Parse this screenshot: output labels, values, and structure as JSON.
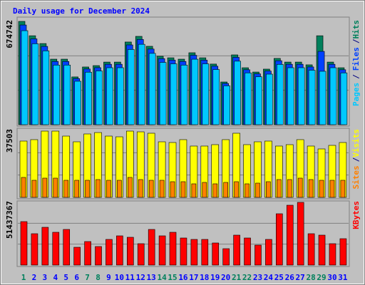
{
  "title": "Daily usage for December 2024",
  "legend_separator": "/",
  "chart_data": [
    {
      "type": "bar",
      "ylim": [
        0,
        674742
      ],
      "yticks": [
        674742
      ],
      "series": [
        {
          "name": "Hits",
          "color": "#00805c",
          "values": [
            674742,
            581000,
            530000,
            428000,
            428000,
            312000,
            377000,
            386000,
            409000,
            409000,
            540000,
            577000,
            512000,
            447000,
            437000,
            428000,
            470000,
            437000,
            396000,
            279000,
            456000,
            372000,
            344000,
            363000,
            433000,
            409000,
            409000,
            391000,
            581000,
            409000,
            372000
          ]
        },
        {
          "name": "Files",
          "color": "#0040ff",
          "values": [
            651200,
            560700,
            511500,
            413000,
            413000,
            301100,
            363800,
            372500,
            394700,
            394700,
            521100,
            556800,
            494100,
            431400,
            421700,
            413000,
            453600,
            421700,
            382100,
            269200,
            440000,
            359000,
            332000,
            350300,
            417800,
            394700,
            394700,
            377300,
            479000,
            394700,
            359000
          ]
        },
        {
          "name": "Pages",
          "color": "#00c8ff",
          "values": [
            614000,
            528700,
            482300,
            389500,
            389500,
            283900,
            343100,
            351300,
            372200,
            372200,
            491400,
            525100,
            465900,
            406800,
            397700,
            389500,
            427700,
            397700,
            360400,
            253900,
            415000,
            338500,
            313000,
            330300,
            394000,
            372200,
            372200,
            355800,
            349000,
            372200,
            338500
          ]
        }
      ]
    },
    {
      "type": "bar",
      "ylim": [
        0,
        37503
      ],
      "yticks": [
        37503
      ],
      "series": [
        {
          "name": "Visits",
          "color": "#ffff00",
          "values": [
            31520,
            32320,
            37100,
            37100,
            34310,
            31120,
            35510,
            36300,
            34310,
            33910,
            37100,
            36700,
            35910,
            31120,
            30720,
            32320,
            28730,
            28730,
            29520,
            32320,
            35910,
            29520,
            31120,
            31520,
            28730,
            29520,
            32320,
            28730,
            27130,
            29120,
            30720
          ]
        },
        {
          "name": "Sites",
          "color": "#ff8000",
          "values": [
            11171,
            9575,
            10772,
            10772,
            9575,
            9575,
            9575,
            9974,
            9575,
            9575,
            11171,
            9974,
            9575,
            9575,
            8777,
            8777,
            7580,
            8378,
            7580,
            8378,
            8777,
            7580,
            7979,
            8777,
            9974,
            9974,
            10772,
            9974,
            9575,
            9575,
            9575
          ]
        }
      ]
    },
    {
      "type": "bar",
      "ylim": [
        0,
        51437367
      ],
      "yticks": [
        51437367
      ],
      "categories": [
        "1",
        "2",
        "3",
        "4",
        "5",
        "6",
        "7",
        "8",
        "9",
        "10",
        "11",
        "12",
        "13",
        "14",
        "15",
        "16",
        "17",
        "18",
        "19",
        "20",
        "21",
        "22",
        "23",
        "24",
        "25",
        "26",
        "27",
        "28",
        "29",
        "30",
        "31"
      ],
      "highlight": [
        0,
        6,
        7,
        13,
        14,
        20,
        21,
        27,
        28
      ],
      "label_color": "#0000ff",
      "highlight_color": "#00805c",
      "series": [
        {
          "name": "KBytes",
          "color": "#ff0000",
          "values": [
            35650000,
            25720000,
            30980000,
            26890000,
            29230000,
            14610000,
            19290000,
            15200000,
            21040000,
            23970000,
            22800000,
            17540000,
            29230000,
            23970000,
            26890000,
            22210000,
            21040000,
            21040000,
            18120000,
            13440000,
            24550000,
            22210000,
            16370000,
            21040000,
            42090000,
            49100000,
            51437367,
            25720000,
            24550000,
            17540000,
            21630000
          ]
        }
      ]
    }
  ]
}
